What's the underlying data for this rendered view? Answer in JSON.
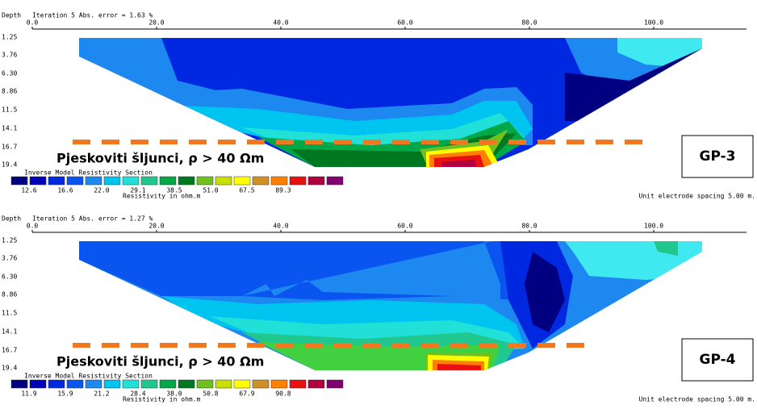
{
  "panels": [
    {
      "header": {
        "depth_label": "Depth",
        "title": "Iteration 5 Abs. error = 1.63 %"
      },
      "x_labels": [
        "0.0",
        "20.0",
        "40.0",
        "60.0",
        "80.0",
        "100.0"
      ],
      "depth_labels": [
        "1.25",
        "3.76",
        "6.30",
        "8.86",
        "11.5",
        "14.1",
        "16.7",
        "19.4"
      ],
      "legend": {
        "title": "Inverse Model Resistivity Section",
        "values": [
          "12.6",
          "16.6",
          "22.0",
          "29.1",
          "38.5",
          "51.0",
          "67.5",
          "89.3"
        ],
        "unit": "Resistivity in ohm.m"
      },
      "spacing": "Unit electrode spacing 5.00 m.",
      "annotation": "Pjeskoviti šljunci, ρ > 40 Ωm",
      "label": "GP-3"
    },
    {
      "header": {
        "depth_label": "Depth",
        "title": "Iteration 5 Abs. error = 1.27 %"
      },
      "x_labels": [
        "0.0",
        "20.0",
        "40.0",
        "60.0",
        "80.0",
        "100.0"
      ],
      "depth_labels": [
        "1.25",
        "3.76",
        "6.30",
        "8.86",
        "11.5",
        "14.1",
        "16.7",
        "19.4"
      ],
      "legend": {
        "title": "Inverse Model Resistivity Section",
        "values": [
          "11.9",
          "15.9",
          "21.2",
          "28.4",
          "38.0",
          "50.8",
          "67.9",
          "90.8"
        ],
        "unit": "Resistivity in ohm.m"
      },
      "spacing": "Unit electrode spacing 5.00 m.",
      "annotation": "Pjeskoviti šljunci, ρ > 40 Ωm",
      "label": "GP-4"
    }
  ]
}
